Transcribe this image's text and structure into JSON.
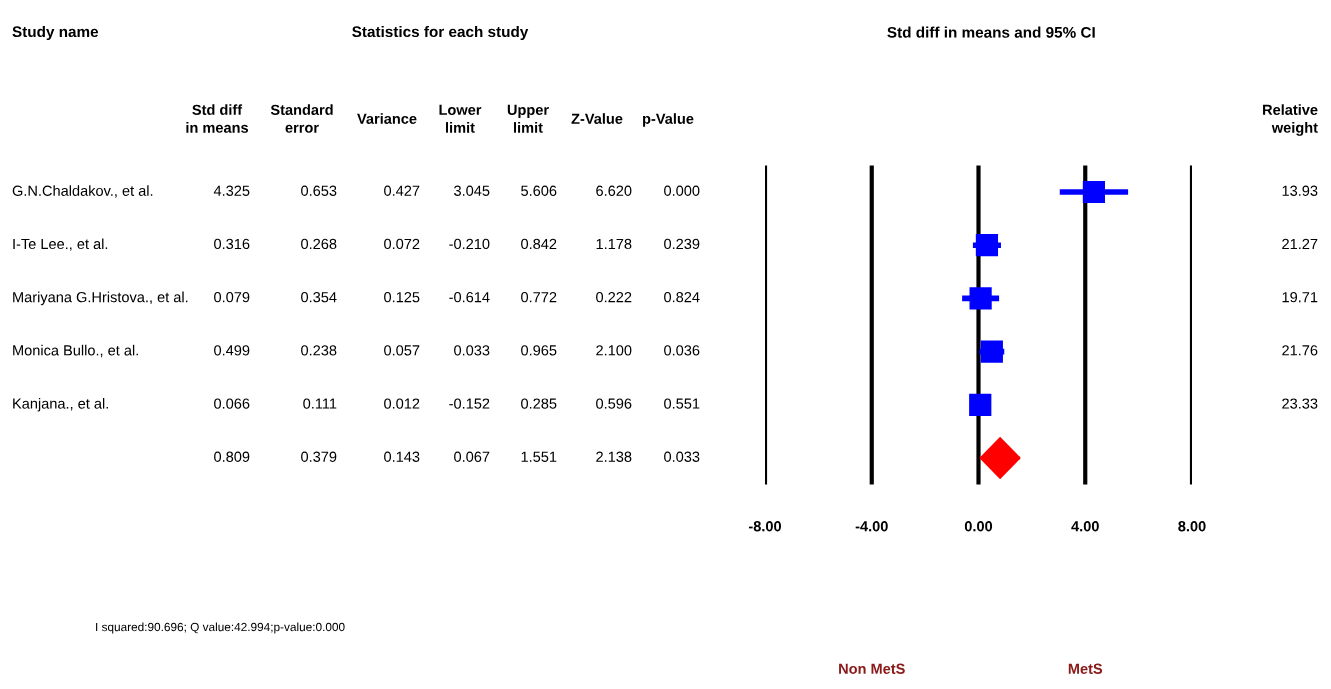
{
  "chart_data": [
    {
      "type": "other",
      "title": "Statistics for each study",
      "categories": [
        "Std diff\nin means",
        "Standard\nerror",
        "Variance",
        "Lower\nlimit",
        "Upper\nlimit",
        "Z-Value",
        "p-Value"
      ],
      "y_categories": [
        "G.N.Chaldakov., et al.",
        "I-Te Lee., et al.",
        "Mariyana G.Hristova., et al.",
        "Monica Bullo., et al.",
        "Kanjana., et al.",
        null
      ],
      "cell_labels": [
        [
          "4.325",
          "0.653",
          "0.427",
          "3.045",
          "5.606",
          "6.620",
          "0.000"
        ],
        [
          "0.316",
          "0.268",
          "0.072",
          "-0.210",
          "0.842",
          "1.178",
          "0.239"
        ],
        [
          "0.079",
          "0.354",
          "0.125",
          "-0.614",
          "0.772",
          "0.222",
          "0.824"
        ],
        [
          "0.499",
          "0.238",
          "0.057",
          "0.033",
          "0.965",
          "2.100",
          "0.036"
        ],
        [
          "0.066",
          "0.111",
          "0.012",
          "-0.152",
          "0.285",
          "0.596",
          "0.551"
        ],
        [
          "0.809",
          "0.379",
          "0.143",
          "0.067",
          "1.551",
          "2.138",
          "0.033"
        ]
      ],
      "annotations": [
        "Study name",
        "I squared:90.696; Q value:42.994;p-value:0.000"
      ]
    },
    {
      "type": "scatter",
      "orientation": "horizontal",
      "title": "Std diff in means and 95% CI",
      "categories": [
        null,
        null,
        null,
        null,
        null,
        null
      ],
      "series": [
        {
          "color": "#0000ff",
          "marker": "square",
          "values": [
            4.325,
            0.316,
            0.079,
            0.499,
            0.066,
            null
          ],
          "errors": [
            [
              3.045,
              5.606
            ],
            [
              -0.21,
              0.842
            ],
            [
              -0.614,
              0.772
            ],
            [
              0.033,
              0.965
            ],
            null,
            null
          ]
        },
        {
          "color": "#ff0000",
          "marker": "diamond",
          "values": [
            null,
            null,
            null,
            null,
            null,
            0.809
          ],
          "errors": [
            null,
            null,
            null,
            null,
            null,
            [
              0.067,
              1.551
            ]
          ]
        }
      ],
      "xlim": [
        -8,
        8
      ],
      "xticks": [
        {
          "value": -8,
          "label": "-8.00"
        },
        {
          "value": -4,
          "label": "-4.00"
        },
        {
          "value": 0,
          "label": "0.00"
        },
        {
          "value": 4,
          "label": "4.00"
        },
        {
          "value": 8,
          "label": "8.00"
        }
      ],
      "grid": "x",
      "tick_labels": "x",
      "annotations": [
        "Non MetS",
        "MetS"
      ]
    },
    {
      "type": "other",
      "categories": [
        "Relative\nweight"
      ],
      "cell_labels": [
        [
          "13.93"
        ],
        [
          "21.27"
        ],
        [
          "19.71"
        ],
        [
          "21.76"
        ],
        [
          "23.33"
        ]
      ]
    }
  ]
}
